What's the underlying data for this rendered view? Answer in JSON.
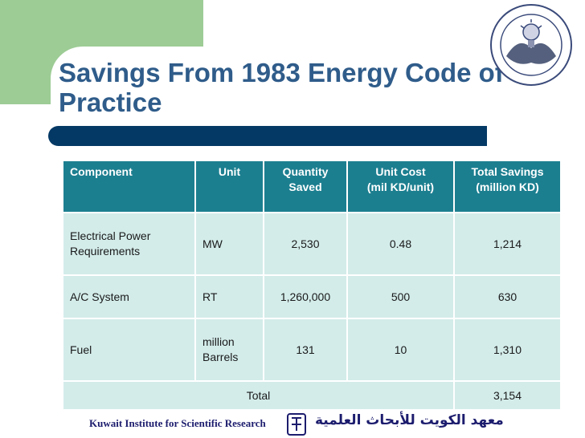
{
  "slide": {
    "title": "Savings From 1983 Energy Code of Practice"
  },
  "table": {
    "headers": [
      "Component",
      "Unit",
      "Quantity\nSaved",
      "Unit Cost\n(mil KD/unit)",
      "Total Savings\n(million KD)"
    ],
    "rows": [
      {
        "component": "Electrical Power Requirements",
        "unit": "MW",
        "quantity": "2,530",
        "unit_cost": "0.48",
        "total": "1,214"
      },
      {
        "component": "A/C System",
        "unit": "RT",
        "quantity": "1,260,000",
        "unit_cost": "500",
        "total": "630"
      },
      {
        "component": "Fuel",
        "unit": "million Barrels",
        "quantity": "131",
        "unit_cost": "10",
        "total": "1,310"
      }
    ],
    "total_label": "Total",
    "total_value": "3,154"
  },
  "footer": {
    "institute_en": "Kuwait Institute for Scientific Research",
    "institute_ar": "معهد الكويت للأبحاث العلمية"
  },
  "colors": {
    "title": "#2f5c8a",
    "header_bg": "#1c7f90",
    "row_bg": "#d3ecea",
    "accent_green": "#9dcc95",
    "rule_navy": "#043965"
  }
}
